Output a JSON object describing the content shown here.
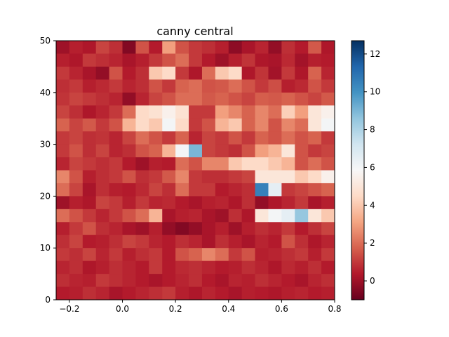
{
  "chart_data": {
    "type": "heatmap",
    "title": "canny central",
    "xlabel": "",
    "ylabel": "",
    "x_range": [
      -0.25,
      0.8
    ],
    "y_range": [
      0,
      50
    ],
    "x_ticks": [
      -0.2,
      0.0,
      0.2,
      0.4,
      0.6,
      0.8
    ],
    "x_tick_labels": [
      "−0.2",
      "0.0",
      "0.2",
      "0.4",
      "0.6",
      "0.8"
    ],
    "y_ticks": [
      0,
      10,
      20,
      30,
      40,
      50
    ],
    "y_tick_labels": [
      "0",
      "10",
      "20",
      "30",
      "40",
      "50"
    ],
    "grid": false,
    "colormap": "RdBu",
    "colormap_stops": [
      "#67001f",
      "#b2182b",
      "#d6604d",
      "#f4a582",
      "#fddbc7",
      "#f7f7f7",
      "#d1e5f0",
      "#92c5de",
      "#4393c3",
      "#2166ac",
      "#053061"
    ],
    "vmin": -1,
    "vmax": 12.7,
    "colorbar_ticks": [
      0,
      2,
      4,
      6,
      8,
      10,
      12
    ],
    "colorbar_tick_labels": [
      "0",
      "2",
      "4",
      "6",
      "8",
      "10",
      "12"
    ],
    "x_bins": 21,
    "y_bins": 20,
    "values": [
      [
        0.0,
        0.5,
        0.3,
        1.2,
        0.8,
        -0.5,
        1.5,
        0.4,
        3.0,
        1.5,
        1.0,
        0.8,
        0.5,
        -0.3,
        0.2,
        0.6,
        -0.2,
        0.8,
        0.4,
        1.6,
        0.3
      ],
      [
        0.5,
        0.3,
        1.0,
        0.8,
        0.6,
        0.2,
        0.5,
        1.0,
        1.5,
        2.0,
        1.0,
        0.4,
        0.0,
        0.5,
        0.9,
        0.3,
        0.2,
        0.7,
        0.1,
        0.5,
        0.4
      ],
      [
        1.0,
        0.6,
        0.2,
        -0.2,
        1.5,
        0.4,
        0.8,
        4.0,
        4.5,
        1.0,
        0.3,
        2.0,
        4.0,
        4.5,
        0.3,
        0.9,
        0.1,
        1.0,
        0.3,
        1.8,
        0.6
      ],
      [
        0.8,
        1.0,
        0.5,
        0.7,
        1.0,
        0.6,
        0.8,
        1.5,
        1.0,
        1.8,
        2.0,
        1.5,
        1.6,
        2.0,
        1.5,
        1.0,
        1.4,
        0.5,
        0.7,
        1.5,
        1.0
      ],
      [
        0.9,
        1.2,
        1.0,
        0.8,
        0.6,
        -0.2,
        0.6,
        1.2,
        1.5,
        2.0,
        2.0,
        1.6,
        1.8,
        1.5,
        1.2,
        1.7,
        1.6,
        1.8,
        1.5,
        1.2,
        1.6
      ],
      [
        1.2,
        0.8,
        0.3,
        0.6,
        1.0,
        2.0,
        4.5,
        4.8,
        5.5,
        4.8,
        1.0,
        1.0,
        3.0,
        2.5,
        1.8,
        2.5,
        2.0,
        4.2,
        3.0,
        5.0,
        5.5
      ],
      [
        1.8,
        1.2,
        1.6,
        1.0,
        1.5,
        3.5,
        4.5,
        4.0,
        6.0,
        4.5,
        1.0,
        1.5,
        3.5,
        4.0,
        1.8,
        2.5,
        1.5,
        2.5,
        2.0,
        5.0,
        6.0
      ],
      [
        1.0,
        1.2,
        0.8,
        0.9,
        0.6,
        1.2,
        2.0,
        1.5,
        1.0,
        1.8,
        0.6,
        1.2,
        1.0,
        1.5,
        1.0,
        1.8,
        1.5,
        2.0,
        1.5,
        1.8,
        1.0
      ],
      [
        1.0,
        1.5,
        0.8,
        1.2,
        0.6,
        0.8,
        1.5,
        1.8,
        3.5,
        6.0,
        9.0,
        1.2,
        1.0,
        0.8,
        1.5,
        3.0,
        3.5,
        5.0,
        1.5,
        1.0,
        1.2
      ],
      [
        0.6,
        1.2,
        1.0,
        0.8,
        1.0,
        0.4,
        0.0,
        0.5,
        0.4,
        2.0,
        1.5,
        2.5,
        2.5,
        4.0,
        4.5,
        4.5,
        4.0,
        3.5,
        1.5,
        2.0,
        1.5
      ],
      [
        2.5,
        1.5,
        0.5,
        0.8,
        1.0,
        1.5,
        0.8,
        1.0,
        1.6,
        2.5,
        1.0,
        0.8,
        0.8,
        1.0,
        1.2,
        5.0,
        5.0,
        5.0,
        4.0,
        4.5,
        5.5
      ],
      [
        2.0,
        1.2,
        0.2,
        0.8,
        0.5,
        0.4,
        0.7,
        1.2,
        0.8,
        2.0,
        1.0,
        1.0,
        0.4,
        0.6,
        0.8,
        10.5,
        6.5,
        1.0,
        1.2,
        1.5,
        1.8
      ],
      [
        0.0,
        0.5,
        0.3,
        1.2,
        1.0,
        0.5,
        1.0,
        0.6,
        0.7,
        0.4,
        0.2,
        0.5,
        0.6,
        0.3,
        0.8,
        -0.2,
        0.3,
        0.6,
        1.0,
        0.2,
        0.5
      ],
      [
        2.0,
        1.5,
        1.0,
        0.6,
        1.0,
        1.5,
        2.0,
        3.5,
        0.2,
        0.5,
        0.6,
        0.2,
        0.0,
        0.8,
        0.3,
        5.0,
        6.0,
        6.5,
        8.5,
        5.0,
        4.0
      ],
      [
        0.5,
        1.0,
        1.5,
        0.8,
        0.6,
        0.2,
        0.0,
        0.5,
        -0.2,
        -0.5,
        -0.2,
        0.2,
        0.5,
        0.0,
        0.5,
        0.8,
        0.6,
        1.0,
        0.4,
        0.8,
        1.2
      ],
      [
        0.8,
        1.2,
        0.4,
        0.5,
        0.8,
        1.2,
        1.0,
        0.6,
        0.4,
        0.8,
        0.6,
        0.2,
        0.8,
        0.5,
        0.2,
        0.6,
        0.4,
        1.5,
        0.8,
        0.3,
        0.6
      ],
      [
        1.0,
        0.8,
        1.2,
        0.6,
        1.0,
        0.5,
        0.8,
        1.0,
        0.4,
        1.5,
        1.8,
        2.5,
        2.0,
        1.0,
        1.5,
        0.5,
        0.6,
        0.8,
        1.0,
        0.5,
        1.0
      ],
      [
        0.6,
        0.8,
        0.3,
        0.5,
        0.8,
        0.6,
        0.4,
        1.0,
        0.4,
        0.7,
        0.8,
        0.6,
        0.4,
        0.5,
        0.8,
        0.6,
        0.3,
        0.7,
        0.5,
        0.8,
        0.4
      ],
      [
        0.8,
        0.6,
        0.5,
        1.0,
        0.8,
        0.6,
        0.4,
        0.2,
        0.4,
        0.6,
        0.8,
        0.4,
        0.2,
        0.6,
        0.5,
        0.8,
        0.6,
        0.4,
        0.2,
        0.6,
        0.8
      ],
      [
        0.4,
        0.5,
        0.8,
        0.6,
        0.2,
        0.4,
        0.6,
        0.8,
        1.0,
        0.5,
        0.3,
        0.6,
        0.4,
        0.2,
        0.5,
        0.4,
        0.3,
        0.5,
        0.6,
        0.4,
        0.5
      ]
    ]
  }
}
